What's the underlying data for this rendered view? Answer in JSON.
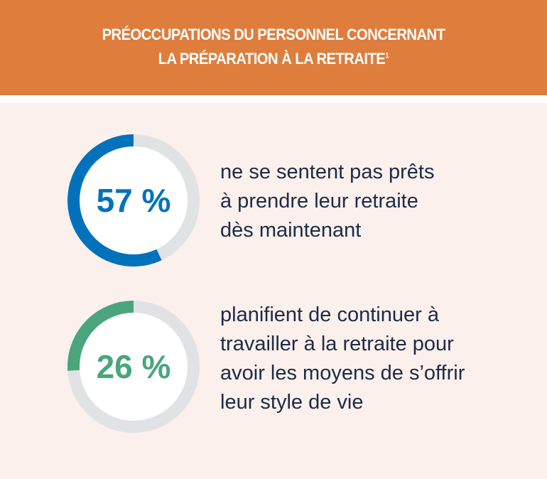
{
  "header": {
    "title_line1": "PRÉOCCUPATIONS DU PERSONNEL CONCERNANT",
    "title_line2": "LA PRÉPARATION À LA RETRAITE",
    "footnote": "1"
  },
  "chart_data": [
    {
      "type": "pie",
      "variant": "donut",
      "value": 57,
      "label": "57 %",
      "color": "#0072bc",
      "track_color": "#e1e2e4",
      "description": [
        "ne se sentent pas prêts",
        "à prendre leur retraite",
        "dès maintenant"
      ]
    },
    {
      "type": "pie",
      "variant": "donut",
      "value": 26,
      "label": "26 %",
      "color": "#4ba57c",
      "track_color": "#e1e2e4",
      "description": [
        "planifient de continuer à",
        "travailler à la retraite pour",
        "avoir les moyens de s’offrir",
        "leur style de vie"
      ]
    }
  ]
}
